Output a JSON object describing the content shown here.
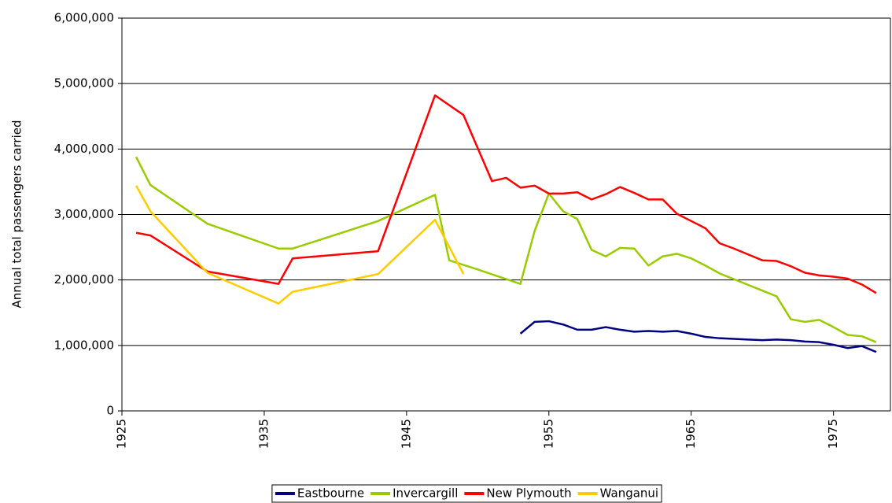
{
  "chart_data": {
    "type": "line",
    "ylabel": "Annual total passengers carried",
    "xlim": [
      1925,
      1979
    ],
    "xticks": [
      1925,
      1935,
      1945,
      1955,
      1965,
      1975
    ],
    "ylim": [
      0,
      6000000
    ],
    "yticks": [
      0,
      {
        "value": 1000000,
        "label": "1,000,000"
      },
      {
        "value": 2000000,
        "label": "2,000,000"
      },
      {
        "value": 3000000,
        "label": "3,000,000"
      },
      {
        "value": 4000000,
        "label": "4,000,000"
      },
      {
        "value": 5000000,
        "label": "5,000,000"
      },
      {
        "value": 6000000,
        "label": "6,000,000"
      }
    ],
    "grid": true,
    "legend": "bottom",
    "series": [
      {
        "name": "Eastbourne",
        "color": "#000080",
        "x": [
          1953,
          1954,
          1955,
          1956,
          1957,
          1958,
          1959,
          1960,
          1961,
          1962,
          1963,
          1964,
          1965,
          1966,
          1967,
          1968,
          1969,
          1970,
          1971,
          1972,
          1973,
          1974,
          1975,
          1976,
          1977,
          1978
        ],
        "values": [
          1180000,
          1360000,
          1370000,
          1320000,
          1240000,
          1240000,
          1280000,
          1240000,
          1210000,
          1220000,
          1210000,
          1220000,
          1180000,
          1130000,
          1110000,
          1100000,
          1090000,
          1080000,
          1090000,
          1080000,
          1060000,
          1050000,
          1010000,
          960000,
          990000,
          900000
        ]
      },
      {
        "name": "Invercargill",
        "color": "#99cc00",
        "x": [
          1926,
          1927,
          1931,
          1936,
          1937,
          1943,
          1947,
          1948,
          1950,
          1953,
          1954,
          1955,
          1956,
          1957,
          1958,
          1959,
          1960,
          1961,
          1962,
          1963,
          1964,
          1965,
          1966,
          1967,
          1971,
          1972,
          1973,
          1974,
          1975,
          1976,
          1977,
          1978
        ],
        "values": [
          3880000,
          3450000,
          2860000,
          2480000,
          2480000,
          2900000,
          3300000,
          2300000,
          2160000,
          1940000,
          2750000,
          3320000,
          3050000,
          2930000,
          2460000,
          2360000,
          2490000,
          2480000,
          2220000,
          2360000,
          2400000,
          2330000,
          2220000,
          2100000,
          1750000,
          1400000,
          1360000,
          1390000,
          1280000,
          1160000,
          1140000,
          1050000
        ]
      },
      {
        "name": "New Plymouth",
        "color": "#ff0000",
        "x": [
          1926,
          1927,
          1931,
          1936,
          1937,
          1943,
          1947,
          1949,
          1951,
          1952,
          1953,
          1954,
          1955,
          1956,
          1957,
          1958,
          1959,
          1960,
          1961,
          1962,
          1963,
          1964,
          1965,
          1966,
          1967,
          1968,
          1969,
          1970,
          1971,
          1972,
          1973,
          1974,
          1975,
          1976,
          1977,
          1978
        ],
        "values": [
          2720000,
          2680000,
          2130000,
          1940000,
          2330000,
          2440000,
          4820000,
          4520000,
          3510000,
          3560000,
          3410000,
          3440000,
          3320000,
          3320000,
          3340000,
          3230000,
          3310000,
          3420000,
          3330000,
          3230000,
          3230000,
          3010000,
          2900000,
          2790000,
          2560000,
          2480000,
          2390000,
          2300000,
          2290000,
          2210000,
          2110000,
          2070000,
          2050000,
          2020000,
          1930000,
          1800000
        ]
      },
      {
        "name": "Wanganui",
        "color": "#ffcc00",
        "x": [
          1926,
          1927,
          1931,
          1936,
          1937,
          1943,
          1947,
          1949
        ],
        "values": [
          3440000,
          3050000,
          2110000,
          1640000,
          1820000,
          2090000,
          2920000,
          2090000
        ]
      }
    ]
  }
}
